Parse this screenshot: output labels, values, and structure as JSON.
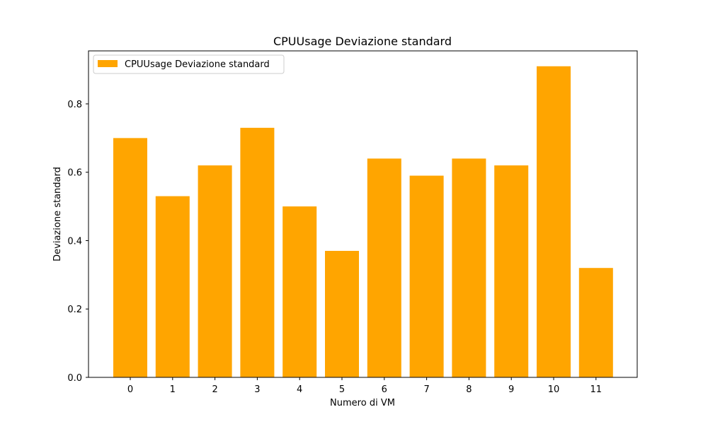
{
  "chart_data": {
    "type": "bar",
    "title": "CPUUsage Deviazione standard",
    "xlabel": "Numero di VM",
    "ylabel": "Deviazione standard",
    "categories": [
      "0",
      "1",
      "2",
      "3",
      "4",
      "5",
      "6",
      "7",
      "8",
      "9",
      "10",
      "11"
    ],
    "series": [
      {
        "name": "CPUUsage Deviazione standard",
        "values": [
          0.7,
          0.53,
          0.62,
          0.73,
          0.5,
          0.37,
          0.64,
          0.59,
          0.64,
          0.62,
          0.91,
          0.32
        ]
      }
    ],
    "ylim": [
      0,
      0.955
    ],
    "yticks": [
      0.0,
      0.2,
      0.4,
      0.6,
      0.8
    ],
    "ytick_labels": [
      "0.0",
      "0.2",
      "0.4",
      "0.6",
      "0.8"
    ],
    "grid": false,
    "legend_position": "top-left",
    "colors": {
      "bar": "#ffa500",
      "axis": "#000000",
      "background": "#ffffff"
    }
  }
}
